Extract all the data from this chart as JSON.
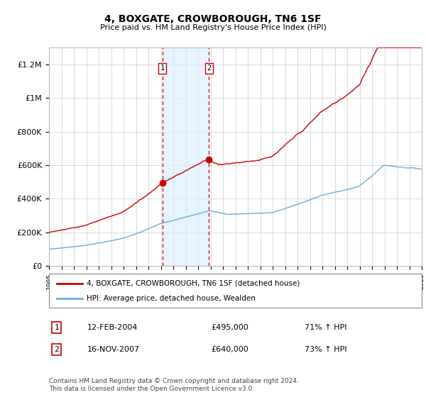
{
  "title": "4, BOXGATE, CROWBOROUGH, TN6 1SF",
  "subtitle": "Price paid vs. HM Land Registry's House Price Index (HPI)",
  "legend_line1": "4, BOXGATE, CROWBOROUGH, TN6 1SF (detached house)",
  "legend_line2": "HPI: Average price, detached house, Wealden",
  "transaction1_date": "12-FEB-2004",
  "transaction1_price": "£495,000",
  "transaction1_hpi": "71% ↑ HPI",
  "transaction1_year": 2004.12,
  "transaction1_value": 495000,
  "transaction2_date": "16-NOV-2007",
  "transaction2_price": "£640,000",
  "transaction2_hpi": "73% ↑ HPI",
  "transaction2_year": 2007.88,
  "transaction2_value": 640000,
  "footer": "Contains HM Land Registry data © Crown copyright and database right 2024.\nThis data is licensed under the Open Government Licence v3.0.",
  "hpi_color": "#6baed6",
  "price_color": "#cc0000",
  "shading_color": "#ddeeff",
  "grid_color": "#cccccc",
  "ylim_min": 0,
  "ylim_max": 1300000,
  "year_start": 1995,
  "year_end": 2025,
  "yticks": [
    0,
    200000,
    400000,
    600000,
    800000,
    1000000,
    1200000
  ],
  "ylabels": [
    "£0",
    "£200K",
    "£400K",
    "£600K",
    "£800K",
    "£1M",
    "£1.2M"
  ]
}
